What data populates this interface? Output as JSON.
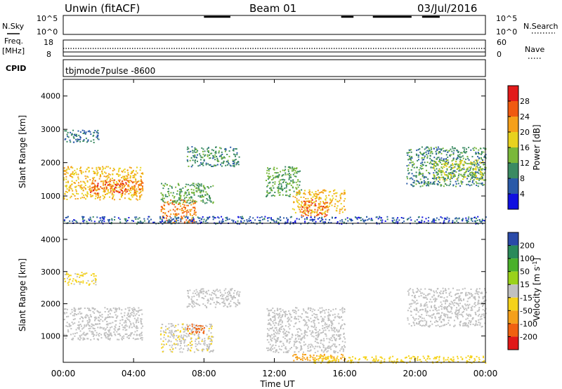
{
  "header": {
    "station": "Unwin (fitACF)",
    "beam": "Beam 01",
    "date": "03/Jul/2016"
  },
  "noise_panel": {
    "left_label": "N.Sky",
    "right_label": "N.Search",
    "left_ticks": [
      "10^5",
      "10^0"
    ],
    "right_ticks": [
      "10^5",
      "10^0"
    ]
  },
  "freq_panel": {
    "left_label_line1": "Freq.",
    "left_label_line2": "[MHz]",
    "right_label": "Nave",
    "left_ticks": [
      "18",
      "8"
    ],
    "right_ticks": [
      "60",
      "0"
    ]
  },
  "cpid_panel": {
    "label": "CPID",
    "mode": "tbjmode7pulse -8600"
  },
  "power_panel": {
    "ylabel": "Slant Range [km]",
    "colorbar_label": "Power [dB]",
    "colorbar_ticks": [
      "28",
      "24",
      "20",
      "16",
      "12",
      "8",
      "4"
    ],
    "colorbar_colors": [
      "#e21a1a",
      "#f05a10",
      "#f5a01a",
      "#e8d21e",
      "#7ab83a",
      "#3a8a62",
      "#2a5aa8",
      "#1010e0"
    ]
  },
  "velocity_panel": {
    "ylabel": "Slant Range [km]",
    "colorbar_label": "Velocity [m s^-1]",
    "colorbar_ticks": [
      "200",
      "100",
      "50",
      "15",
      "-15",
      "-50",
      "-100",
      "-200"
    ],
    "colorbar_colors": [
      "#2a4aa8",
      "#2a8a5a",
      "#4ab02a",
      "#9ad21a",
      "#c0c0c0",
      "#f5d21a",
      "#f5a01a",
      "#f06010",
      "#e01818"
    ]
  },
  "x_axis": {
    "label": "Time UT",
    "ticks": [
      "00:00",
      "04:00",
      "08:00",
      "12:00",
      "16:00",
      "20:00",
      "00:00"
    ]
  },
  "chart_data": {
    "type": "heatmap",
    "title": "Unwin (fitACF)",
    "xlabel": "Time UT",
    "ylabel": "Slant Range [km]",
    "xlim": [
      0,
      24
    ],
    "ylim": [
      180,
      4500
    ],
    "yticks": [
      1000,
      2000,
      3000,
      4000
    ],
    "power_regions": [
      {
        "t": [
          0.0,
          4.5
        ],
        "r": [
          900,
          1900
        ],
        "db": 20
      },
      {
        "t": [
          1.5,
          4.5
        ],
        "r": [
          1100,
          1500
        ],
        "db": 26
      },
      {
        "t": [
          0.0,
          2.0
        ],
        "r": [
          2600,
          3000
        ],
        "db": 8
      },
      {
        "t": [
          5.5,
          7.5
        ],
        "r": [
          200,
          900
        ],
        "db": 24
      },
      {
        "t": [
          5.5,
          8.5
        ],
        "r": [
          800,
          1400
        ],
        "db": 12
      },
      {
        "t": [
          7.0,
          10.0
        ],
        "r": [
          1900,
          2500
        ],
        "db": 10
      },
      {
        "t": [
          11.5,
          13.5
        ],
        "r": [
          1000,
          1900
        ],
        "db": 12
      },
      {
        "t": [
          13.0,
          16.0
        ],
        "r": [
          500,
          1200
        ],
        "db": 20
      },
      {
        "t": [
          13.5,
          15.0
        ],
        "r": [
          400,
          900
        ],
        "db": 26
      },
      {
        "t": [
          19.5,
          24.0
        ],
        "r": [
          1300,
          2500
        ],
        "db": 10
      },
      {
        "t": [
          21.0,
          24.0
        ],
        "r": [
          1500,
          2100
        ],
        "db": 16
      },
      {
        "t": [
          0.0,
          24.0
        ],
        "r": [
          180,
          400
        ],
        "db": 6
      }
    ],
    "velocity_regions": [
      {
        "t": [
          0.0,
          4.5
        ],
        "r": [
          900,
          1900
        ],
        "vel": -5
      },
      {
        "t": [
          0.0,
          2.0
        ],
        "r": [
          2600,
          3000
        ],
        "vel": -20
      },
      {
        "t": [
          5.5,
          8.5
        ],
        "r": [
          500,
          1400
        ],
        "vel": -10
      },
      {
        "t": [
          7.0,
          8.0
        ],
        "r": [
          1100,
          1400
        ],
        "vel": -150
      },
      {
        "t": [
          7.0,
          10.0
        ],
        "r": [
          1900,
          2500
        ],
        "vel": 0
      },
      {
        "t": [
          11.5,
          16.0
        ],
        "r": [
          500,
          1900
        ],
        "vel": 0
      },
      {
        "t": [
          13.0,
          16.0
        ],
        "r": [
          250,
          450
        ],
        "vel": -60
      },
      {
        "t": [
          19.5,
          24.0
        ],
        "r": [
          1300,
          2500
        ],
        "vel": 0
      },
      {
        "t": [
          14.0,
          24.0
        ],
        "r": [
          180,
          400
        ],
        "vel": -40
      }
    ],
    "noise_sky_segments": [
      [
        8.0,
        9.5
      ],
      [
        15.8,
        16.5
      ],
      [
        17.6,
        19.8
      ],
      [
        20.4,
        21.4
      ]
    ],
    "freq_mhz": 11.2,
    "nave": 0
  }
}
